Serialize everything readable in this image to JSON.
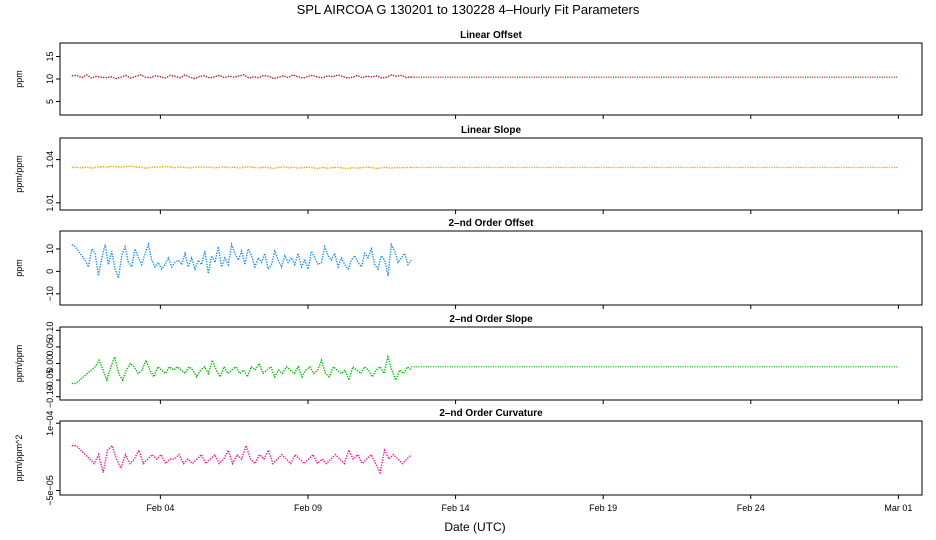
{
  "chart_data": {
    "type": "line",
    "title": "SPL   AIRCOA G   130201 to 130228   4–Hourly Fit Parameters",
    "xlabel": "Date (UTC)",
    "x_tick_labels": [
      "Feb 04",
      "Feb 09",
      "Feb 14",
      "Feb 19",
      "Feb 24",
      "Mar 01"
    ],
    "x_tick_days": [
      4,
      9,
      14,
      19,
      24,
      29
    ],
    "xlim": [
      0.6,
      29.8
    ],
    "panels": [
      {
        "name": "linear-offset",
        "title": "Linear Offset",
        "ylabel": "ppm",
        "color": "#b22222",
        "ylim": [
          2,
          18
        ],
        "yticks": [
          5,
          10,
          15
        ],
        "ytick_labels": [
          "5",
          "10",
          "15"
        ],
        "fit_day_limit": 12.5,
        "fill_value": 10.4,
        "series": [
          10.7,
          10.8,
          10.3,
          10.9,
          10.2,
          10.6,
          10.4,
          10.3,
          10.5,
          10.1,
          10.4,
          10.8,
          10.2,
          10.6,
          10.9,
          10.4,
          10.3,
          10.7,
          10.5,
          10.2,
          10.8,
          10.6,
          10.3,
          10.9,
          10.4,
          10.1,
          10.6,
          10.7,
          10.2,
          10.5,
          10.8,
          10.3,
          10.6,
          10.4,
          10.7,
          10.9,
          10.2,
          10.5,
          10.3,
          10.8,
          10.6,
          10.1,
          10.4,
          10.7,
          10.3,
          10.9,
          10.5,
          10.2,
          10.6,
          10.8,
          10.4,
          10.3,
          10.7,
          10.5,
          10.9,
          10.6,
          10.2,
          10.4,
          10.8,
          10.3,
          10.6,
          10.5,
          10.7,
          10.2,
          10.4,
          10.9,
          10.6,
          10.8,
          10.3,
          10.5
        ]
      },
      {
        "name": "linear-slope",
        "title": "Linear Slope",
        "ylabel": "ppm/ppm",
        "color": "#ffa500",
        "ylim": [
          1.005,
          1.055
        ],
        "yticks": [
          1.01,
          1.04
        ],
        "ytick_labels": [
          "1.01",
          "1.04"
        ],
        "fit_day_limit": 12.5,
        "fill_value": 1.0345,
        "series": [
          1.0345,
          1.0347,
          1.0342,
          1.0349,
          1.034,
          1.0346,
          1.0351,
          1.0348,
          1.0353,
          1.035,
          1.0347,
          1.0352,
          1.0355,
          1.0349,
          1.0346,
          1.034,
          1.0345,
          1.035,
          1.0347,
          1.0353,
          1.0348,
          1.0344,
          1.0349,
          1.0346,
          1.0342,
          1.0347,
          1.035,
          1.0345,
          1.0348,
          1.0343,
          1.0346,
          1.0349,
          1.0344,
          1.0347,
          1.0341,
          1.0346,
          1.035,
          1.0345,
          1.0342,
          1.0348,
          1.0344,
          1.0339,
          1.0345,
          1.0349,
          1.0343,
          1.0346,
          1.0341,
          1.0344,
          1.0348,
          1.0342,
          1.0339,
          1.0345,
          1.034,
          1.0344,
          1.0347,
          1.0342,
          1.0338,
          1.0344,
          1.034,
          1.0345,
          1.0348,
          1.0343,
          1.0339,
          1.0344,
          1.0346,
          1.0341,
          1.0345,
          1.0343,
          1.0346,
          1.0345
        ]
      },
      {
        "name": "second-order-offset",
        "title": "2–nd Order Offset",
        "ylabel": "ppm",
        "color": "#1e90ff",
        "ylim": [
          -15,
          18
        ],
        "yticks": [
          -10,
          0,
          10
        ],
        "ytick_labels": [
          "−10",
          "0",
          "10"
        ],
        "fit_day_limit": 12.5,
        "fill_value": null,
        "series": [
          12,
          11,
          9,
          7,
          5,
          2,
          10,
          8,
          -2,
          6,
          12,
          3,
          9,
          1,
          -3,
          7,
          11,
          4,
          2,
          10,
          6,
          3,
          8,
          12,
          5,
          2,
          4,
          1,
          3,
          6,
          2,
          4,
          5,
          3,
          8,
          2,
          6,
          1,
          5,
          3,
          9,
          -1,
          7,
          4,
          11,
          2,
          6,
          3,
          12,
          8,
          5,
          9,
          3,
          10,
          7,
          2,
          6,
          4,
          8,
          1,
          3,
          9,
          5,
          2,
          7,
          4,
          6,
          3,
          8,
          2,
          5,
          1,
          9,
          6,
          3,
          4,
          11,
          7,
          5,
          8,
          2,
          6,
          3,
          1,
          5,
          7,
          4,
          2,
          8,
          6,
          10,
          3,
          1,
          7,
          5,
          -2,
          12,
          9,
          4,
          6,
          8,
          3,
          5
        ]
      },
      {
        "name": "second-order-slope",
        "title": "2–nd Order Slope",
        "ylabel": "ppm/ppm",
        "color": "#00c000",
        "ylim": [
          -0.11,
          0.11
        ],
        "yticks": [
          -0.1,
          -0.05,
          0.0,
          0.05,
          0.1
        ],
        "ytick_labels": [
          "−0.10",
          "−0.05",
          "0.00",
          "0.05",
          "0.10"
        ],
        "fit_day_limit": 12.5,
        "fill_value": -0.01,
        "series": [
          -0.06,
          -0.06,
          -0.05,
          -0.04,
          -0.03,
          -0.02,
          -0.01,
          0.01,
          -0.02,
          -0.05,
          -0.01,
          0.02,
          -0.03,
          -0.05,
          -0.02,
          0.0,
          -0.01,
          -0.03,
          -0.02,
          0.01,
          -0.02,
          -0.04,
          -0.01,
          -0.02,
          -0.03,
          -0.01,
          -0.02,
          -0.01,
          -0.02,
          -0.03,
          -0.01,
          -0.02,
          -0.04,
          -0.02,
          -0.01,
          -0.03,
          0.01,
          -0.02,
          -0.04,
          -0.01,
          -0.03,
          -0.02,
          -0.01,
          -0.03,
          -0.02,
          -0.04,
          -0.01,
          -0.02,
          0.0,
          -0.03,
          -0.02,
          -0.01,
          -0.04,
          -0.02,
          -0.03,
          -0.01,
          -0.02,
          -0.03,
          -0.01,
          -0.04,
          -0.02,
          -0.01,
          -0.03,
          -0.02,
          0.01,
          -0.03,
          -0.04,
          -0.01,
          -0.02,
          -0.03,
          -0.02,
          -0.05,
          -0.01,
          -0.02,
          -0.03,
          -0.01,
          -0.02,
          -0.04,
          -0.02,
          -0.01,
          -0.03,
          0.02,
          -0.02,
          -0.05,
          -0.02,
          -0.03,
          -0.01,
          -0.02
        ]
      },
      {
        "name": "second-order-curvature",
        "title": "2–nd Order Curvature",
        "ylabel": "ppm/ppm^2",
        "color": "#ff1493",
        "ylim": [
          -6e-05,
          0.000105
        ],
        "yticks": [
          -5e-05,
          0.0001
        ],
        "ytick_labels": [
          "−5e−05",
          "1e−04"
        ],
        "fit_day_limit": 12.5,
        "fill_value": null,
        "series": [
          5e-05,
          5e-05,
          4e-05,
          3e-05,
          2e-05,
          1e-05,
          3e-05,
          -1e-05,
          4e-05,
          5e-05,
          2e-05,
          0,
          3e-05,
          1e-05,
          2e-05,
          4e-05,
          1e-05,
          2e-05,
          3e-05,
          2e-05,
          3e-05,
          1e-05,
          2e-05,
          2e-05,
          3e-05,
          1e-05,
          2e-05,
          1e-05,
          2e-05,
          3e-05,
          1e-05,
          2e-05,
          3e-05,
          1e-05,
          2e-05,
          4e-05,
          1e-05,
          3e-05,
          2e-05,
          5e-05,
          2e-05,
          1e-05,
          3e-05,
          2e-05,
          4e-05,
          1e-05,
          2e-05,
          3e-05,
          2e-05,
          1e-05,
          3e-05,
          2e-05,
          1e-05,
          2e-05,
          3e-05,
          1e-05,
          2e-05,
          1e-05,
          2e-05,
          3e-05,
          2e-05,
          1e-05,
          4e-05,
          2e-05,
          3e-05,
          1e-05,
          2e-05,
          3e-05,
          1e-05,
          -1e-05,
          4e-05,
          2e-05,
          3e-05,
          2e-05,
          1e-05,
          2e-05,
          3e-05
        ]
      }
    ]
  }
}
